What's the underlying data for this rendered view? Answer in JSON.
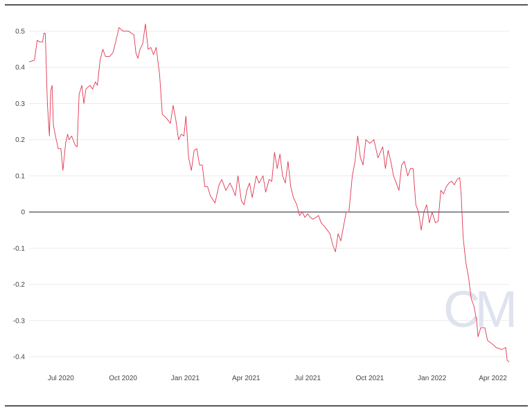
{
  "chart_data": {
    "type": "line",
    "title": "",
    "xlabel": "",
    "ylabel": "",
    "xlim": [
      "2020-05-15",
      "2022-04-25"
    ],
    "ylim": [
      -0.4,
      0.5
    ],
    "grid": true,
    "y_ticks": [
      0.5,
      0.4,
      0.3,
      0.2,
      0.1,
      0,
      -0.1,
      -0.2,
      -0.3,
      -0.4
    ],
    "y_tick_labels": [
      "0.5",
      "0.4",
      "0.3",
      "0.2",
      "0.1",
      "0",
      "-0.1",
      "-0.2",
      "-0.3",
      "-0.4"
    ],
    "x_ticks": [
      "2020-07-01",
      "2020-10-01",
      "2021-01-01",
      "2021-04-01",
      "2021-07-01",
      "2021-10-01",
      "2022-01-01",
      "2022-04-01"
    ],
    "x_tick_labels": [
      "Jul 2020",
      "Oct 2020",
      "Jan 2021",
      "Apr 2021",
      "Jul 2021",
      "Oct 2021",
      "Jan 2022",
      "Apr 2022"
    ],
    "zero_line": true,
    "line_color": "#e0344f",
    "watermark": "CM",
    "series": [
      {
        "points": [
          [
            "2020-05-15",
            0.415
          ],
          [
            "2020-05-23",
            0.42
          ],
          [
            "2020-05-27",
            0.475
          ],
          [
            "2020-05-31",
            0.47
          ],
          [
            "2020-06-04",
            0.47
          ],
          [
            "2020-06-06",
            0.495
          ],
          [
            "2020-06-08",
            0.493
          ],
          [
            "2020-06-11",
            0.3
          ],
          [
            "2020-06-14",
            0.21
          ],
          [
            "2020-06-16",
            0.335
          ],
          [
            "2020-06-18",
            0.35
          ],
          [
            "2020-06-20",
            0.24
          ],
          [
            "2020-06-23",
            0.21
          ],
          [
            "2020-06-27",
            0.175
          ],
          [
            "2020-07-01",
            0.175
          ],
          [
            "2020-07-04",
            0.115
          ],
          [
            "2020-07-08",
            0.19
          ],
          [
            "2020-07-11",
            0.215
          ],
          [
            "2020-07-13",
            0.2
          ],
          [
            "2020-07-17",
            0.21
          ],
          [
            "2020-07-22",
            0.185
          ],
          [
            "2020-07-25",
            0.18
          ],
          [
            "2020-07-28",
            0.325
          ],
          [
            "2020-08-01",
            0.35
          ],
          [
            "2020-08-04",
            0.3
          ],
          [
            "2020-08-07",
            0.34
          ],
          [
            "2020-08-13",
            0.35
          ],
          [
            "2020-08-17",
            0.34
          ],
          [
            "2020-08-21",
            0.36
          ],
          [
            "2020-08-24",
            0.35
          ],
          [
            "2020-08-28",
            0.42
          ],
          [
            "2020-09-01",
            0.45
          ],
          [
            "2020-09-05",
            0.43
          ],
          [
            "2020-09-11",
            0.43
          ],
          [
            "2020-09-16",
            0.44
          ],
          [
            "2020-09-20",
            0.47
          ],
          [
            "2020-09-25",
            0.51
          ],
          [
            "2020-10-01",
            0.5
          ],
          [
            "2020-10-09",
            0.5
          ],
          [
            "2020-10-17",
            0.49
          ],
          [
            "2020-10-20",
            0.44
          ],
          [
            "2020-10-23",
            0.425
          ],
          [
            "2020-10-26",
            0.45
          ],
          [
            "2020-10-30",
            0.465
          ],
          [
            "2020-11-03",
            0.52
          ],
          [
            "2020-11-07",
            0.45
          ],
          [
            "2020-11-11",
            0.455
          ],
          [
            "2020-11-15",
            0.435
          ],
          [
            "2020-11-19",
            0.455
          ],
          [
            "2020-11-24",
            0.38
          ],
          [
            "2020-11-28",
            0.27
          ],
          [
            "2020-12-04",
            0.26
          ],
          [
            "2020-12-10",
            0.245
          ],
          [
            "2020-12-14",
            0.295
          ],
          [
            "2020-12-18",
            0.255
          ],
          [
            "2020-12-22",
            0.2
          ],
          [
            "2020-12-26",
            0.215
          ],
          [
            "2020-12-30",
            0.21
          ],
          [
            "2021-01-02",
            0.265
          ],
          [
            "2021-01-06",
            0.15
          ],
          [
            "2021-01-10",
            0.115
          ],
          [
            "2021-01-14",
            0.17
          ],
          [
            "2021-01-18",
            0.175
          ],
          [
            "2021-01-22",
            0.13
          ],
          [
            "2021-01-26",
            0.13
          ],
          [
            "2021-01-30",
            0.07
          ],
          [
            "2021-02-03",
            0.07
          ],
          [
            "2021-02-07",
            0.045
          ],
          [
            "2021-02-14",
            0.025
          ],
          [
            "2021-02-20",
            0.075
          ],
          [
            "2021-02-24",
            0.09
          ],
          [
            "2021-03-02",
            0.06
          ],
          [
            "2021-03-08",
            0.08
          ],
          [
            "2021-03-12",
            0.065
          ],
          [
            "2021-03-16",
            0.045
          ],
          [
            "2021-03-20",
            0.1
          ],
          [
            "2021-03-25",
            0.03
          ],
          [
            "2021-03-29",
            0.02
          ],
          [
            "2021-04-02",
            0.06
          ],
          [
            "2021-04-06",
            0.08
          ],
          [
            "2021-04-10",
            0.04
          ],
          [
            "2021-04-16",
            0.1
          ],
          [
            "2021-04-20",
            0.08
          ],
          [
            "2021-04-26",
            0.1
          ],
          [
            "2021-04-30",
            0.055
          ],
          [
            "2021-05-05",
            0.09
          ],
          [
            "2021-05-09",
            0.085
          ],
          [
            "2021-05-13",
            0.165
          ],
          [
            "2021-05-17",
            0.12
          ],
          [
            "2021-05-21",
            0.16
          ],
          [
            "2021-05-25",
            0.1
          ],
          [
            "2021-05-29",
            0.08
          ],
          [
            "2021-06-02",
            0.14
          ],
          [
            "2021-06-06",
            0.07
          ],
          [
            "2021-06-10",
            0.04
          ],
          [
            "2021-06-15",
            0.02
          ],
          [
            "2021-06-19",
            -0.01
          ],
          [
            "2021-06-23",
            0.0
          ],
          [
            "2021-06-27",
            -0.015
          ],
          [
            "2021-07-01",
            -0.005
          ],
          [
            "2021-07-05",
            -0.015
          ],
          [
            "2021-07-09",
            -0.02
          ],
          [
            "2021-07-13",
            -0.015
          ],
          [
            "2021-07-17",
            -0.01
          ],
          [
            "2021-07-21",
            -0.03
          ],
          [
            "2021-07-26",
            -0.04
          ],
          [
            "2021-07-30",
            -0.05
          ],
          [
            "2021-08-03",
            -0.06
          ],
          [
            "2021-08-07",
            -0.09
          ],
          [
            "2021-08-11",
            -0.11
          ],
          [
            "2021-08-15",
            -0.06
          ],
          [
            "2021-08-19",
            -0.08
          ],
          [
            "2021-08-23",
            -0.04
          ],
          [
            "2021-08-27",
            0.0
          ],
          [
            "2021-08-31",
            0.0
          ],
          [
            "2021-09-05",
            0.1
          ],
          [
            "2021-09-09",
            0.14
          ],
          [
            "2021-09-13",
            0.21
          ],
          [
            "2021-09-17",
            0.15
          ],
          [
            "2021-09-21",
            0.13
          ],
          [
            "2021-09-25",
            0.2
          ],
          [
            "2021-10-01",
            0.19
          ],
          [
            "2021-10-07",
            0.2
          ],
          [
            "2021-10-13",
            0.15
          ],
          [
            "2021-10-20",
            0.18
          ],
          [
            "2021-10-24",
            0.12
          ],
          [
            "2021-10-28",
            0.17
          ],
          [
            "2021-11-01",
            0.14
          ],
          [
            "2021-11-05",
            0.1
          ],
          [
            "2021-11-09",
            0.08
          ],
          [
            "2021-11-13",
            0.06
          ],
          [
            "2021-11-17",
            0.13
          ],
          [
            "2021-11-21",
            0.14
          ],
          [
            "2021-11-26",
            0.1
          ],
          [
            "2021-11-30",
            0.12
          ],
          [
            "2021-12-04",
            0.12
          ],
          [
            "2021-12-08",
            0.02
          ],
          [
            "2021-12-12",
            0.0
          ],
          [
            "2021-12-16",
            -0.05
          ],
          [
            "2021-12-20",
            0.0
          ],
          [
            "2021-12-24",
            0.02
          ],
          [
            "2021-12-28",
            -0.03
          ],
          [
            "2022-01-01",
            0.0
          ],
          [
            "2022-01-06",
            -0.03
          ],
          [
            "2022-01-10",
            -0.025
          ],
          [
            "2022-01-14",
            0.06
          ],
          [
            "2022-01-18",
            0.05
          ],
          [
            "2022-01-22",
            0.07
          ],
          [
            "2022-01-26",
            0.08
          ],
          [
            "2022-01-30",
            0.085
          ],
          [
            "2022-02-03",
            0.075
          ],
          [
            "2022-02-07",
            0.09
          ],
          [
            "2022-02-11",
            0.095
          ],
          [
            "2022-02-13",
            0.05
          ],
          [
            "2022-02-16",
            -0.07
          ],
          [
            "2022-02-20",
            -0.14
          ],
          [
            "2022-02-24",
            -0.18
          ],
          [
            "2022-02-28",
            -0.24
          ],
          [
            "2022-03-04",
            -0.26
          ],
          [
            "2022-03-08",
            -0.3
          ],
          [
            "2022-03-10",
            -0.345
          ],
          [
            "2022-03-14",
            -0.32
          ],
          [
            "2022-03-20",
            -0.32
          ],
          [
            "2022-03-24",
            -0.355
          ],
          [
            "2022-03-31",
            -0.365
          ],
          [
            "2022-04-06",
            -0.375
          ],
          [
            "2022-04-14",
            -0.38
          ],
          [
            "2022-04-20",
            -0.375
          ],
          [
            "2022-04-22",
            -0.41
          ],
          [
            "2022-04-25",
            -0.415
          ]
        ]
      }
    ]
  }
}
